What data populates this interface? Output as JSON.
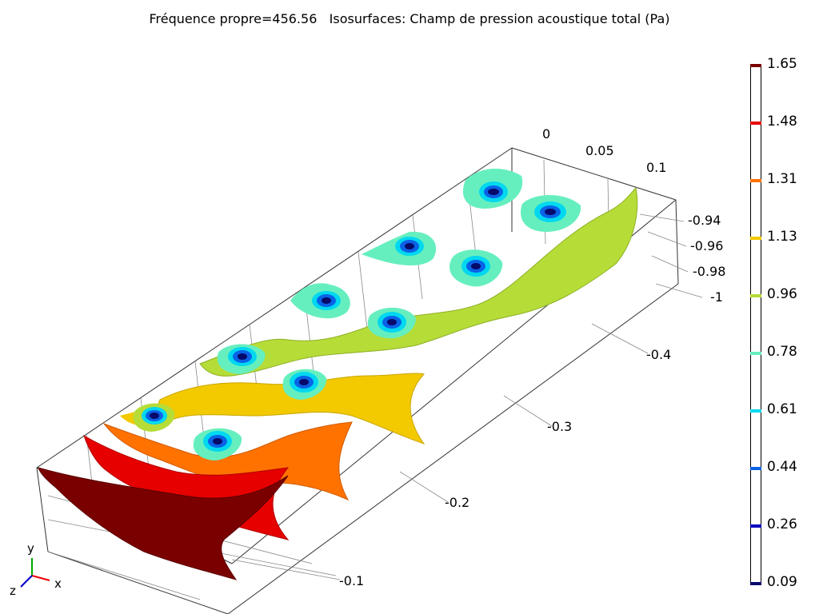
{
  "title": "Fréquence propre=456.56   Isosurfaces: Champ de pression acoustique total (Pa)",
  "colors": {
    "dark_red": "#7a0000",
    "red": "#e60000",
    "orange": "#ff7200",
    "yellow": "#f3c900",
    "yellow_green": "#b6dc38",
    "aqua": "#66efbe",
    "cyan": "#00d8f0",
    "blue": "#0a62e6",
    "dark_blue": "#0000c0",
    "navy": "#060a6a"
  },
  "axes": {
    "top_ticks": [
      "0",
      "0.05",
      "0.1"
    ],
    "right_ticks": [
      "-0.94",
      "-0.96",
      "-0.98",
      "-1"
    ],
    "depth_ticks": [
      "-0.4",
      "-0.3",
      "-0.2",
      "-0.1"
    ],
    "triad": {
      "x": "x",
      "y": "y",
      "z": "z"
    }
  },
  "legend": [
    {
      "value": "1.65",
      "color": "#7a0000"
    },
    {
      "value": "1.48",
      "color": "#e60000"
    },
    {
      "value": "1.31",
      "color": "#ff7200"
    },
    {
      "value": "1.13",
      "color": "#f3c900"
    },
    {
      "value": "0.96",
      "color": "#b6dc38"
    },
    {
      "value": "0.78",
      "color": "#66efbe"
    },
    {
      "value": "0.61",
      "color": "#00d8f0"
    },
    {
      "value": "0.44",
      "color": "#0a62e6"
    },
    {
      "value": "0.26",
      "color": "#0000c0"
    },
    {
      "value": "0.09",
      "color": "#060a6a"
    }
  ]
}
